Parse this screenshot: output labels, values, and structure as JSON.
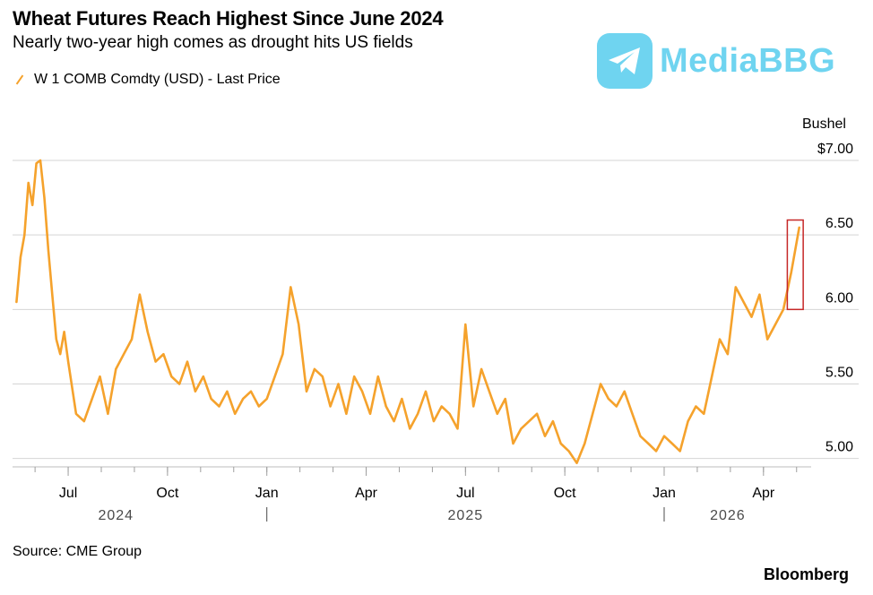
{
  "chart_data": {
    "type": "line",
    "title": "Wheat Futures Reach Highest Since June 2024",
    "subtitle": "Nearly two-year high comes as drought hits US fields",
    "legend": [
      "W 1 COMB Comdty (USD) - Last Price"
    ],
    "unit_label": "Bushel",
    "y_ticks": [
      {
        "value": 7.0,
        "label": "$7.00"
      },
      {
        "value": 6.5,
        "label": "6.50"
      },
      {
        "value": 6.0,
        "label": "6.00"
      },
      {
        "value": 5.5,
        "label": "5.50"
      },
      {
        "value": 5.0,
        "label": "5.00"
      }
    ],
    "ylim": [
      4.95,
      7.0
    ],
    "xlim": [
      2024.36,
      2026.37
    ],
    "x_ticks": [
      {
        "value": 2024.5,
        "label": "Jul"
      },
      {
        "value": 2024.75,
        "label": "Oct"
      },
      {
        "value": 2025.0,
        "label": "Jan"
      },
      {
        "value": 2025.25,
        "label": "Apr"
      },
      {
        "value": 2025.5,
        "label": "Jul"
      },
      {
        "value": 2025.75,
        "label": "Oct"
      },
      {
        "value": 2026.0,
        "label": "Jan"
      },
      {
        "value": 2026.25,
        "label": "Apr"
      }
    ],
    "years": [
      {
        "value": 2024.62,
        "label": "2024"
      },
      {
        "value": 2025.5,
        "label": "2025"
      },
      {
        "value": 2026.16,
        "label": "2026"
      }
    ],
    "year_separators": [
      2025.0,
      2026.0
    ],
    "series": [
      {
        "name": "W 1 COMB Comdty (USD) - Last Price",
        "color": "#f5a22c",
        "x": [
          2024.37,
          2024.38,
          2024.39,
          2024.4,
          2024.41,
          2024.42,
          2024.43,
          2024.44,
          2024.45,
          2024.46,
          2024.47,
          2024.48,
          2024.49,
          2024.5,
          2024.52,
          2024.54,
          2024.56,
          2024.58,
          2024.6,
          2024.62,
          2024.64,
          2024.66,
          2024.68,
          2024.7,
          2024.72,
          2024.74,
          2024.76,
          2024.78,
          2024.8,
          2024.82,
          2024.84,
          2024.86,
          2024.88,
          2024.9,
          2024.92,
          2024.94,
          2024.96,
          2024.98,
          2025.0,
          2025.02,
          2025.04,
          2025.06,
          2025.08,
          2025.1,
          2025.12,
          2025.14,
          2025.16,
          2025.18,
          2025.2,
          2025.22,
          2025.24,
          2025.26,
          2025.28,
          2025.3,
          2025.32,
          2025.34,
          2025.36,
          2025.38,
          2025.4,
          2025.42,
          2025.44,
          2025.46,
          2025.48,
          2025.5,
          2025.52,
          2025.54,
          2025.56,
          2025.58,
          2025.6,
          2025.62,
          2025.64,
          2025.66,
          2025.68,
          2025.7,
          2025.72,
          2025.74,
          2025.76,
          2025.78,
          2025.8,
          2025.82,
          2025.84,
          2025.86,
          2025.88,
          2025.9,
          2025.92,
          2025.94,
          2025.96,
          2025.98,
          2026.0,
          2026.02,
          2026.04,
          2026.06,
          2026.08,
          2026.1,
          2026.12,
          2026.14,
          2026.16,
          2026.18,
          2026.2,
          2026.22,
          2026.24,
          2026.26,
          2026.28,
          2026.3,
          2026.32,
          2026.34
        ],
        "values": [
          6.05,
          6.35,
          6.5,
          6.85,
          6.7,
          6.98,
          7.0,
          6.75,
          6.4,
          6.1,
          5.8,
          5.7,
          5.85,
          5.65,
          5.3,
          5.25,
          5.4,
          5.55,
          5.3,
          5.6,
          5.7,
          5.8,
          6.1,
          5.85,
          5.65,
          5.7,
          5.55,
          5.5,
          5.65,
          5.45,
          5.55,
          5.4,
          5.35,
          5.45,
          5.3,
          5.4,
          5.45,
          5.35,
          5.4,
          5.55,
          5.7,
          6.15,
          5.9,
          5.45,
          5.6,
          5.55,
          5.35,
          5.5,
          5.3,
          5.55,
          5.45,
          5.3,
          5.55,
          5.35,
          5.25,
          5.4,
          5.2,
          5.3,
          5.45,
          5.25,
          5.35,
          5.3,
          5.2,
          5.9,
          5.35,
          5.6,
          5.45,
          5.3,
          5.4,
          5.1,
          5.2,
          5.25,
          5.3,
          5.15,
          5.25,
          5.1,
          5.05,
          4.97,
          5.1,
          5.3,
          5.5,
          5.4,
          5.35,
          5.45,
          5.3,
          5.15,
          5.1,
          5.05,
          5.15,
          5.1,
          5.05,
          5.25,
          5.35,
          5.3,
          5.55,
          5.8,
          5.7,
          6.15,
          6.05,
          5.95,
          6.1,
          5.8,
          5.9,
          6.0,
          6.25,
          6.55
        ]
      }
    ],
    "highlight_box": {
      "x_from": 2026.31,
      "x_to": 2026.35,
      "y_from": 6.0,
      "y_to": 6.6,
      "color": "#c62828"
    }
  },
  "footer": {
    "source": "Source: CME Group",
    "brand": "Bloomberg"
  },
  "watermark": {
    "text": "MediaBBG",
    "color": "#6fd4f0"
  }
}
